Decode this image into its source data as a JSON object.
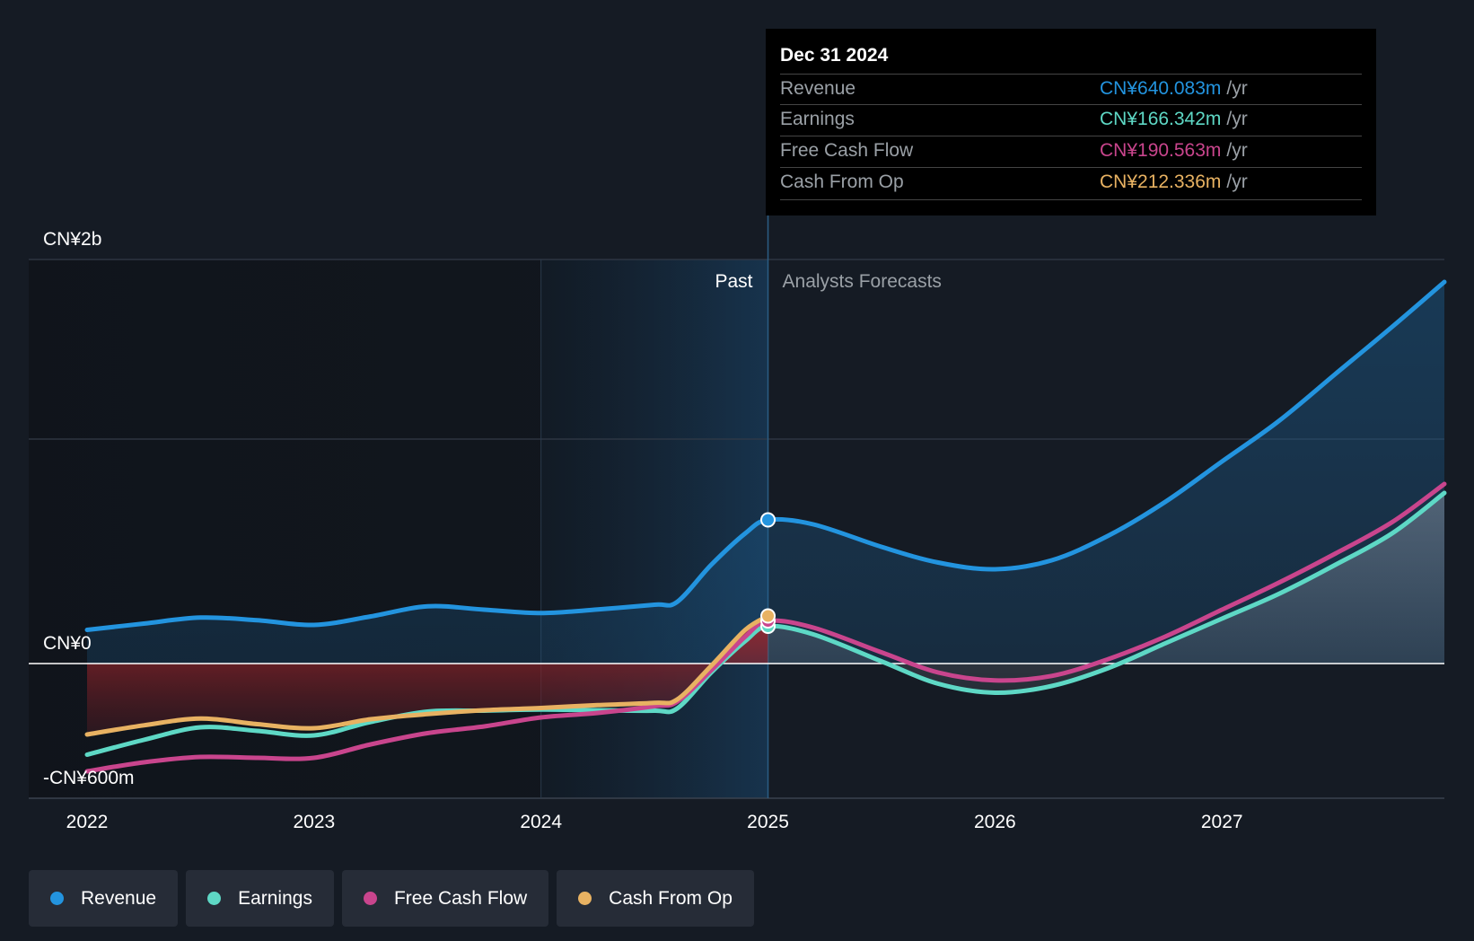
{
  "chart_data": {
    "type": "line",
    "title": "",
    "currency_unit": "CN¥ millions",
    "y_axis": {
      "min": -600,
      "max": 1800,
      "tick_labels": [
        {
          "value": 1800,
          "label": "CN¥2b"
        },
        {
          "value": 0,
          "label": "CN¥0"
        },
        {
          "value": -600,
          "label": "-CN¥600m"
        }
      ]
    },
    "x_axis": {
      "min": 2022.0,
      "max": 2027.98,
      "ticks": [
        2022,
        2023,
        2024,
        2025,
        2026,
        2027
      ],
      "tick_labels": [
        "2022",
        "2023",
        "2024",
        "2025",
        "2026",
        "2027"
      ]
    },
    "gridlines_y": [
      1800,
      1000,
      0
    ],
    "highlight_start": 2024.0,
    "divider": 2025.0,
    "past_label": "Past",
    "forecast_label": "Analysts Forecasts",
    "series": [
      {
        "name": "Revenue",
        "color": "#2394df",
        "points": [
          [
            2022.0,
            150
          ],
          [
            2022.25,
            178
          ],
          [
            2022.5,
            205
          ],
          [
            2022.75,
            193
          ],
          [
            2023.0,
            172
          ],
          [
            2023.25,
            210
          ],
          [
            2023.5,
            255
          ],
          [
            2023.75,
            240
          ],
          [
            2024.0,
            225
          ],
          [
            2024.25,
            241
          ],
          [
            2024.5,
            262
          ],
          [
            2024.6,
            275
          ],
          [
            2024.75,
            440
          ],
          [
            2024.9,
            580
          ],
          [
            2025.0,
            640
          ],
          [
            2025.2,
            620
          ],
          [
            2025.5,
            520
          ],
          [
            2025.75,
            450
          ],
          [
            2026.0,
            420
          ],
          [
            2026.25,
            460
          ],
          [
            2026.5,
            570
          ],
          [
            2026.75,
            720
          ],
          [
            2027.0,
            900
          ],
          [
            2027.25,
            1080
          ],
          [
            2027.5,
            1290
          ],
          [
            2027.75,
            1500
          ],
          [
            2027.98,
            1700
          ]
        ]
      },
      {
        "name": "Earnings",
        "color": "#5ed8c5",
        "points": [
          [
            2022.0,
            -406
          ],
          [
            2022.25,
            -340
          ],
          [
            2022.5,
            -284
          ],
          [
            2022.75,
            -300
          ],
          [
            2023.0,
            -320
          ],
          [
            2023.25,
            -260
          ],
          [
            2023.5,
            -214
          ],
          [
            2023.75,
            -210
          ],
          [
            2024.0,
            -205
          ],
          [
            2024.25,
            -208
          ],
          [
            2024.5,
            -210
          ],
          [
            2024.6,
            -200
          ],
          [
            2024.75,
            -40
          ],
          [
            2024.9,
            100
          ],
          [
            2025.0,
            166
          ],
          [
            2025.2,
            130
          ],
          [
            2025.5,
            10
          ],
          [
            2025.75,
            -90
          ],
          [
            2026.0,
            -130
          ],
          [
            2026.25,
            -100
          ],
          [
            2026.5,
            -20
          ],
          [
            2026.75,
            90
          ],
          [
            2027.0,
            200
          ],
          [
            2027.25,
            310
          ],
          [
            2027.5,
            440
          ],
          [
            2027.75,
            580
          ],
          [
            2027.98,
            760
          ]
        ]
      },
      {
        "name": "Free Cash Flow",
        "color": "#c9458d",
        "points": [
          [
            2022.0,
            -480
          ],
          [
            2022.25,
            -440
          ],
          [
            2022.5,
            -416
          ],
          [
            2022.75,
            -420
          ],
          [
            2023.0,
            -420
          ],
          [
            2023.25,
            -360
          ],
          [
            2023.5,
            -310
          ],
          [
            2023.75,
            -280
          ],
          [
            2024.0,
            -240
          ],
          [
            2024.25,
            -220
          ],
          [
            2024.5,
            -190
          ],
          [
            2024.6,
            -170
          ],
          [
            2024.75,
            -30
          ],
          [
            2024.9,
            120
          ],
          [
            2025.0,
            190
          ],
          [
            2025.2,
            160
          ],
          [
            2025.5,
            50
          ],
          [
            2025.75,
            -40
          ],
          [
            2026.0,
            -75
          ],
          [
            2026.25,
            -55
          ],
          [
            2026.5,
            20
          ],
          [
            2026.75,
            120
          ],
          [
            2027.0,
            240
          ],
          [
            2027.25,
            360
          ],
          [
            2027.5,
            490
          ],
          [
            2027.75,
            630
          ],
          [
            2027.98,
            800
          ]
        ]
      },
      {
        "name": "Cash From Op",
        "color": "#e8b262",
        "points": [
          [
            2022.0,
            -316
          ],
          [
            2022.25,
            -275
          ],
          [
            2022.5,
            -245
          ],
          [
            2022.75,
            -270
          ],
          [
            2023.0,
            -288
          ],
          [
            2023.25,
            -248
          ],
          [
            2023.5,
            -225
          ],
          [
            2023.75,
            -208
          ],
          [
            2024.0,
            -198
          ],
          [
            2024.25,
            -185
          ],
          [
            2024.5,
            -175
          ],
          [
            2024.6,
            -160
          ],
          [
            2024.75,
            -10
          ],
          [
            2024.9,
            150
          ],
          [
            2025.0,
            212
          ]
        ]
      }
    ],
    "tooltip": {
      "date": "Dec 31 2024",
      "unit": "/yr",
      "rows": [
        {
          "label": "Revenue",
          "value": "CN¥640.083m",
          "color": "#2394df"
        },
        {
          "label": "Earnings",
          "value": "CN¥166.342m",
          "color": "#5ed8c5"
        },
        {
          "label": "Free Cash Flow",
          "value": "CN¥190.563m",
          "color": "#c9458d"
        },
        {
          "label": "Cash From Op",
          "value": "CN¥212.336m",
          "color": "#e8b262"
        }
      ]
    },
    "legend": [
      {
        "label": "Revenue",
        "color": "#2394df"
      },
      {
        "label": "Earnings",
        "color": "#5ed8c5"
      },
      {
        "label": "Free Cash Flow",
        "color": "#c9458d"
      },
      {
        "label": "Cash From Op",
        "color": "#e8b262"
      }
    ]
  }
}
